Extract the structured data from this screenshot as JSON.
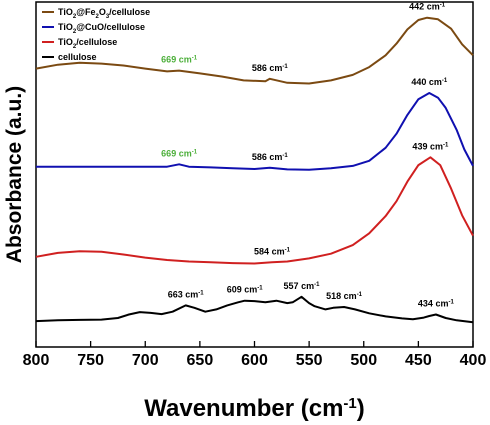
{
  "chart_data": {
    "type": "line",
    "xlabel": "Wavenumber (cm-1)",
    "ylabel": "Absorbance (a.u.)",
    "xlim": [
      800,
      400
    ],
    "x_ticks": [
      800,
      750,
      700,
      650,
      600,
      550,
      500,
      450,
      400
    ],
    "y_tick_labels": "none",
    "legend_position": "top-left",
    "series": [
      {
        "name": "TiO2@Fe2O3/cellulose",
        "color": "#7B4A12",
        "x": [
          800,
          780,
          760,
          740,
          720,
          700,
          680,
          669,
          650,
          630,
          610,
          590,
          586,
          570,
          550,
          530,
          510,
          495,
          480,
          470,
          460,
          450,
          442,
          432,
          420,
          410,
          400
        ],
        "y": [
          65.0,
          66.0,
          66.5,
          66.3,
          65.8,
          65.0,
          64.3,
          64.5,
          63.8,
          63.0,
          62.0,
          61.8,
          62.4,
          61.4,
          61.2,
          62.0,
          63.4,
          65.4,
          68.4,
          71.4,
          75.0,
          77.4,
          78.0,
          77.6,
          75.2,
          71.2,
          68.4
        ]
      },
      {
        "name": "TiO2@CuO/cellulose",
        "color": "#1010B0",
        "x": [
          800,
          760,
          720,
          680,
          669,
          660,
          640,
          620,
          600,
          586,
          570,
          550,
          530,
          510,
          495,
          480,
          470,
          460,
          450,
          440,
          432,
          425,
          415,
          408,
          400
        ],
        "y": [
          40.0,
          40.0,
          40.0,
          40.0,
          40.6,
          40.0,
          39.8,
          39.6,
          39.4,
          39.7,
          39.3,
          39.2,
          39.6,
          40.2,
          41.5,
          44.8,
          48.4,
          53.2,
          57.2,
          58.8,
          57.6,
          55.0,
          49.4,
          44.4,
          40.2
        ]
      },
      {
        "name": "TiO2/cellulose",
        "color": "#D02020",
        "x": [
          800,
          780,
          760,
          740,
          720,
          700,
          680,
          660,
          640,
          620,
          600,
          584,
          570,
          550,
          530,
          510,
          495,
          480,
          470,
          460,
          450,
          439,
          430,
          420,
          410,
          400
        ],
        "y": [
          17.0,
          18.0,
          18.4,
          18.3,
          17.6,
          16.8,
          16.2,
          15.8,
          15.6,
          15.4,
          15.3,
          15.6,
          15.8,
          16.6,
          17.8,
          20.0,
          23.0,
          27.4,
          31.2,
          36.2,
          40.4,
          42.4,
          40.4,
          34.4,
          27.6,
          22.4
        ]
      },
      {
        "name": "cellulose",
        "color": "#000000",
        "x": [
          800,
          780,
          760,
          740,
          725,
          715,
          705,
          695,
          685,
          675,
          663,
          655,
          645,
          635,
          625,
          615,
          609,
          600,
          590,
          580,
          570,
          565,
          557,
          550,
          545,
          535,
          528,
          518,
          508,
          495,
          480,
          465,
          455,
          445,
          440,
          434,
          425,
          415,
          400
        ],
        "y": [
          0.6,
          0.8,
          0.9,
          1.0,
          1.4,
          2.3,
          2.9,
          2.7,
          2.4,
          3.0,
          4.6,
          4.0,
          3.0,
          3.6,
          4.6,
          5.4,
          5.8,
          5.7,
          5.4,
          5.8,
          5.2,
          5.4,
          6.8,
          5.2,
          4.4,
          3.6,
          4.0,
          4.2,
          3.6,
          2.6,
          1.8,
          1.3,
          1.1,
          1.5,
          1.9,
          2.3,
          1.4,
          0.8,
          0.3
        ]
      }
    ],
    "annotations": [
      {
        "text": "442 cm-1",
        "x": 442,
        "y": 78.0,
        "color": "#000000"
      },
      {
        "text": "669 cm-1",
        "x": 669,
        "y": 64.5,
        "color": "#4CAF3A"
      },
      {
        "text": "586 cm-1",
        "x": 586,
        "y": 62.4,
        "color": "#000000"
      },
      {
        "text": "440 cm-1",
        "x": 440,
        "y": 58.8,
        "color": "#000000"
      },
      {
        "text": "669 cm-1",
        "x": 669,
        "y": 40.6,
        "color": "#4CAF3A"
      },
      {
        "text": "586 cm-1",
        "x": 586,
        "y": 39.7,
        "color": "#000000"
      },
      {
        "text": "439 cm-1",
        "x": 439,
        "y": 42.4,
        "color": "#000000"
      },
      {
        "text": "584 cm-1",
        "x": 584,
        "y": 15.6,
        "color": "#000000"
      },
      {
        "text": "663 cm-1",
        "x": 663,
        "y": 4.6,
        "color": "#000000"
      },
      {
        "text": "609 cm-1",
        "x": 609,
        "y": 5.8,
        "color": "#000000"
      },
      {
        "text": "557 cm-1",
        "x": 557,
        "y": 6.8,
        "color": "#000000"
      },
      {
        "text": "518 cm-1",
        "x": 518,
        "y": 4.2,
        "color": "#000000"
      },
      {
        "text": "434 cm-1",
        "x": 434,
        "y": 2.3,
        "color": "#000000"
      }
    ]
  }
}
